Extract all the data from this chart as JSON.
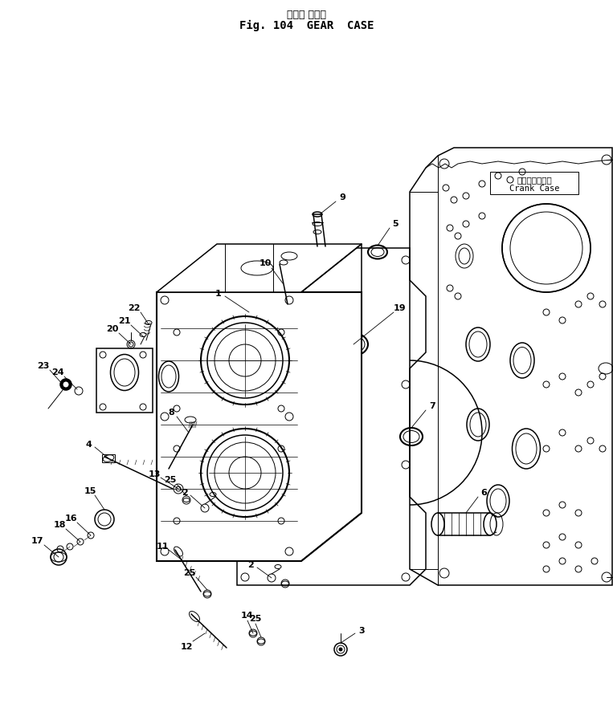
{
  "title_japanese": "ギヤー ケース",
  "title_english": "Fig. 104  GEAR  CASE",
  "crank_jp": "クランクケース",
  "crank_en": "Crank Case",
  "bg_color": "#ffffff",
  "figsize": [
    7.63,
    9.03
  ],
  "dpi": 100,
  "lw_thin": 0.7,
  "lw_med": 1.1,
  "lw_thick": 1.5,
  "font_s": 8.0
}
